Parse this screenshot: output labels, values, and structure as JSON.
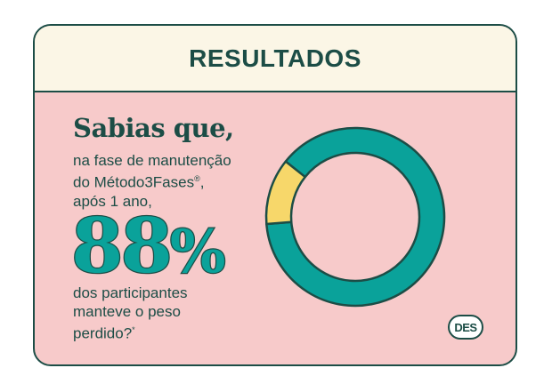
{
  "header": {
    "title": "RESULTADOS"
  },
  "intro": {
    "lead": "Sabias que,",
    "line1": "na fase de manutenção",
    "line2": "do Método3Fases",
    "line2_mark": "®",
    "line2_end": ",",
    "line3": "após 1 ano,"
  },
  "stat": {
    "number": "88",
    "unit": "%"
  },
  "outro": {
    "line1": "dos participantes",
    "line2": "manteve o peso",
    "line3": "perdido?",
    "line3_mark": "*"
  },
  "logo": {
    "text": "DES"
  },
  "chart_data": {
    "type": "pie",
    "style": "donut",
    "values": [
      88,
      12
    ],
    "colors": [
      "#0aa29a",
      "#f7d76a"
    ],
    "outline_color": "#1c4d46"
  },
  "colors": {
    "background": "#f7caca",
    "header_background": "#fbf6e6",
    "text": "#1c4d46",
    "accent": "#0aa29a",
    "highlight": "#f7d76a"
  }
}
